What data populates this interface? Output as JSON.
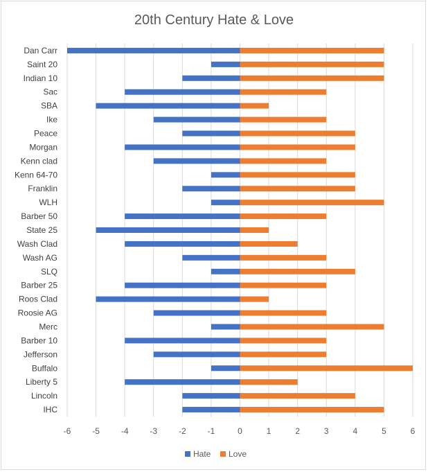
{
  "chart_data": {
    "type": "bar",
    "orientation": "horizontal",
    "title": "20th Century Hate & Love",
    "categories": [
      "Dan Carr",
      "Saint 20",
      "Indian 10",
      "Sac",
      "SBA",
      "Ike",
      "Peace",
      "Morgan",
      "Kenn clad",
      "Kenn 64-70",
      "Franklin",
      "WLH",
      "Barber 50",
      "State 25",
      "Wash Clad",
      "Wash AG",
      "SLQ",
      "Barber 25",
      "Roos Clad",
      "Roosie AG",
      "Merc",
      "Barber 10",
      "Jefferson",
      "Buffalo",
      "Liberty 5",
      "Lincoln",
      "IHC"
    ],
    "series": [
      {
        "name": "Hate",
        "color": "#4472c4",
        "values": [
          -6,
          -1,
          -2,
          -4,
          -5,
          -3,
          -2,
          -4,
          -3,
          -1,
          -2,
          -1,
          -4,
          -5,
          -4,
          -2,
          -1,
          -4,
          -5,
          -3,
          -1,
          -4,
          -3,
          -1,
          -4,
          -2,
          -2
        ]
      },
      {
        "name": "Love",
        "color": "#ed7d31",
        "values": [
          5,
          5,
          5,
          3,
          1,
          3,
          4,
          4,
          3,
          4,
          4,
          5,
          3,
          1,
          2,
          3,
          4,
          3,
          1,
          3,
          5,
          3,
          3,
          6,
          2,
          4,
          5
        ]
      }
    ],
    "xlim": [
      -6,
      6
    ],
    "xticks": [
      "-6",
      "-5",
      "-4",
      "-3",
      "-2",
      "-1",
      "0",
      "1",
      "2",
      "3",
      "4",
      "5",
      "6"
    ],
    "grid": true,
    "legend_position": "bottom"
  }
}
